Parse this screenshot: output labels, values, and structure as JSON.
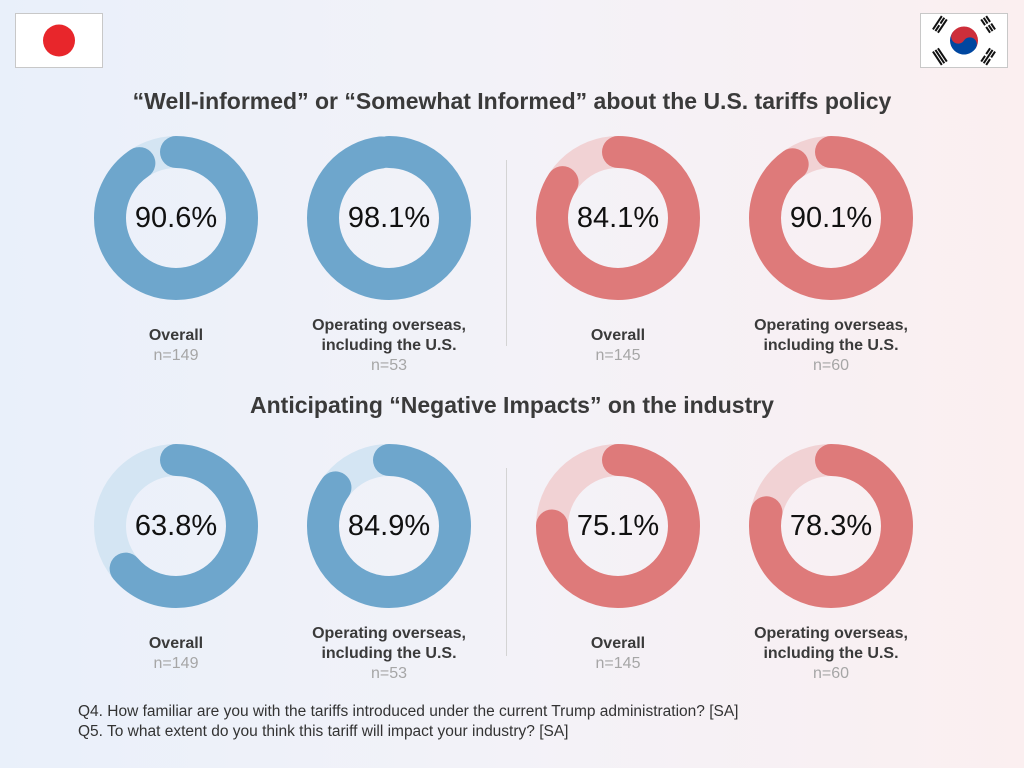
{
  "flags": {
    "left": "japan-flag",
    "right": "south-korea-flag"
  },
  "colors": {
    "japan_ring": "#6ea6cc",
    "japan_track": "#d4e5f3",
    "korea_ring": "#de7a7a",
    "korea_track": "#f1d2d4"
  },
  "chart_data": [
    {
      "type": "donut",
      "title": "“Well-informed” or “Somewhat Informed” about the U.S. tariffs policy",
      "panels": [
        {
          "country": "Japan",
          "label": "Overall",
          "n": "n=149",
          "value": 90.6,
          "display": "90.6%"
        },
        {
          "country": "Japan",
          "label": "Operating overseas, including the U.S.",
          "label_lines": [
            "Operating overseas,",
            "including the U.S."
          ],
          "n": "n=53",
          "value": 98.1,
          "display": "98.1%"
        },
        {
          "country": "Korea",
          "label": "Overall",
          "n": "n=145",
          "value": 84.1,
          "display": "84.1%"
        },
        {
          "country": "Korea",
          "label": "Operating overseas, including the U.S.",
          "label_lines": [
            "Operating overseas,",
            "including the U.S."
          ],
          "n": "n=60",
          "value": 90.1,
          "display": "90.1%"
        }
      ]
    },
    {
      "type": "donut",
      "title": "Anticipating “Negative Impacts” on the industry",
      "panels": [
        {
          "country": "Japan",
          "label": "Overall",
          "n": "n=149",
          "value": 63.8,
          "display": "63.8%"
        },
        {
          "country": "Japan",
          "label": "Operating overseas, including the U.S.",
          "label_lines": [
            "Operating overseas,",
            "including the U.S."
          ],
          "n": "n=53",
          "value": 84.9,
          "display": "84.9%"
        },
        {
          "country": "Korea",
          "label": "Overall",
          "n": "n=145",
          "value": 75.1,
          "display": "75.1%"
        },
        {
          "country": "Korea",
          "label": "Operating overseas, including the U.S.",
          "label_lines": [
            "Operating overseas,",
            "including the U.S."
          ],
          "n": "n=60",
          "value": 78.3,
          "display": "78.3%"
        }
      ]
    }
  ],
  "footnotes": [
    "Q4. How familiar are you with the tariffs introduced under the current Trump administration? [SA]",
    "Q5. To what extent do you think this tariff will impact your industry? [SA]"
  ]
}
